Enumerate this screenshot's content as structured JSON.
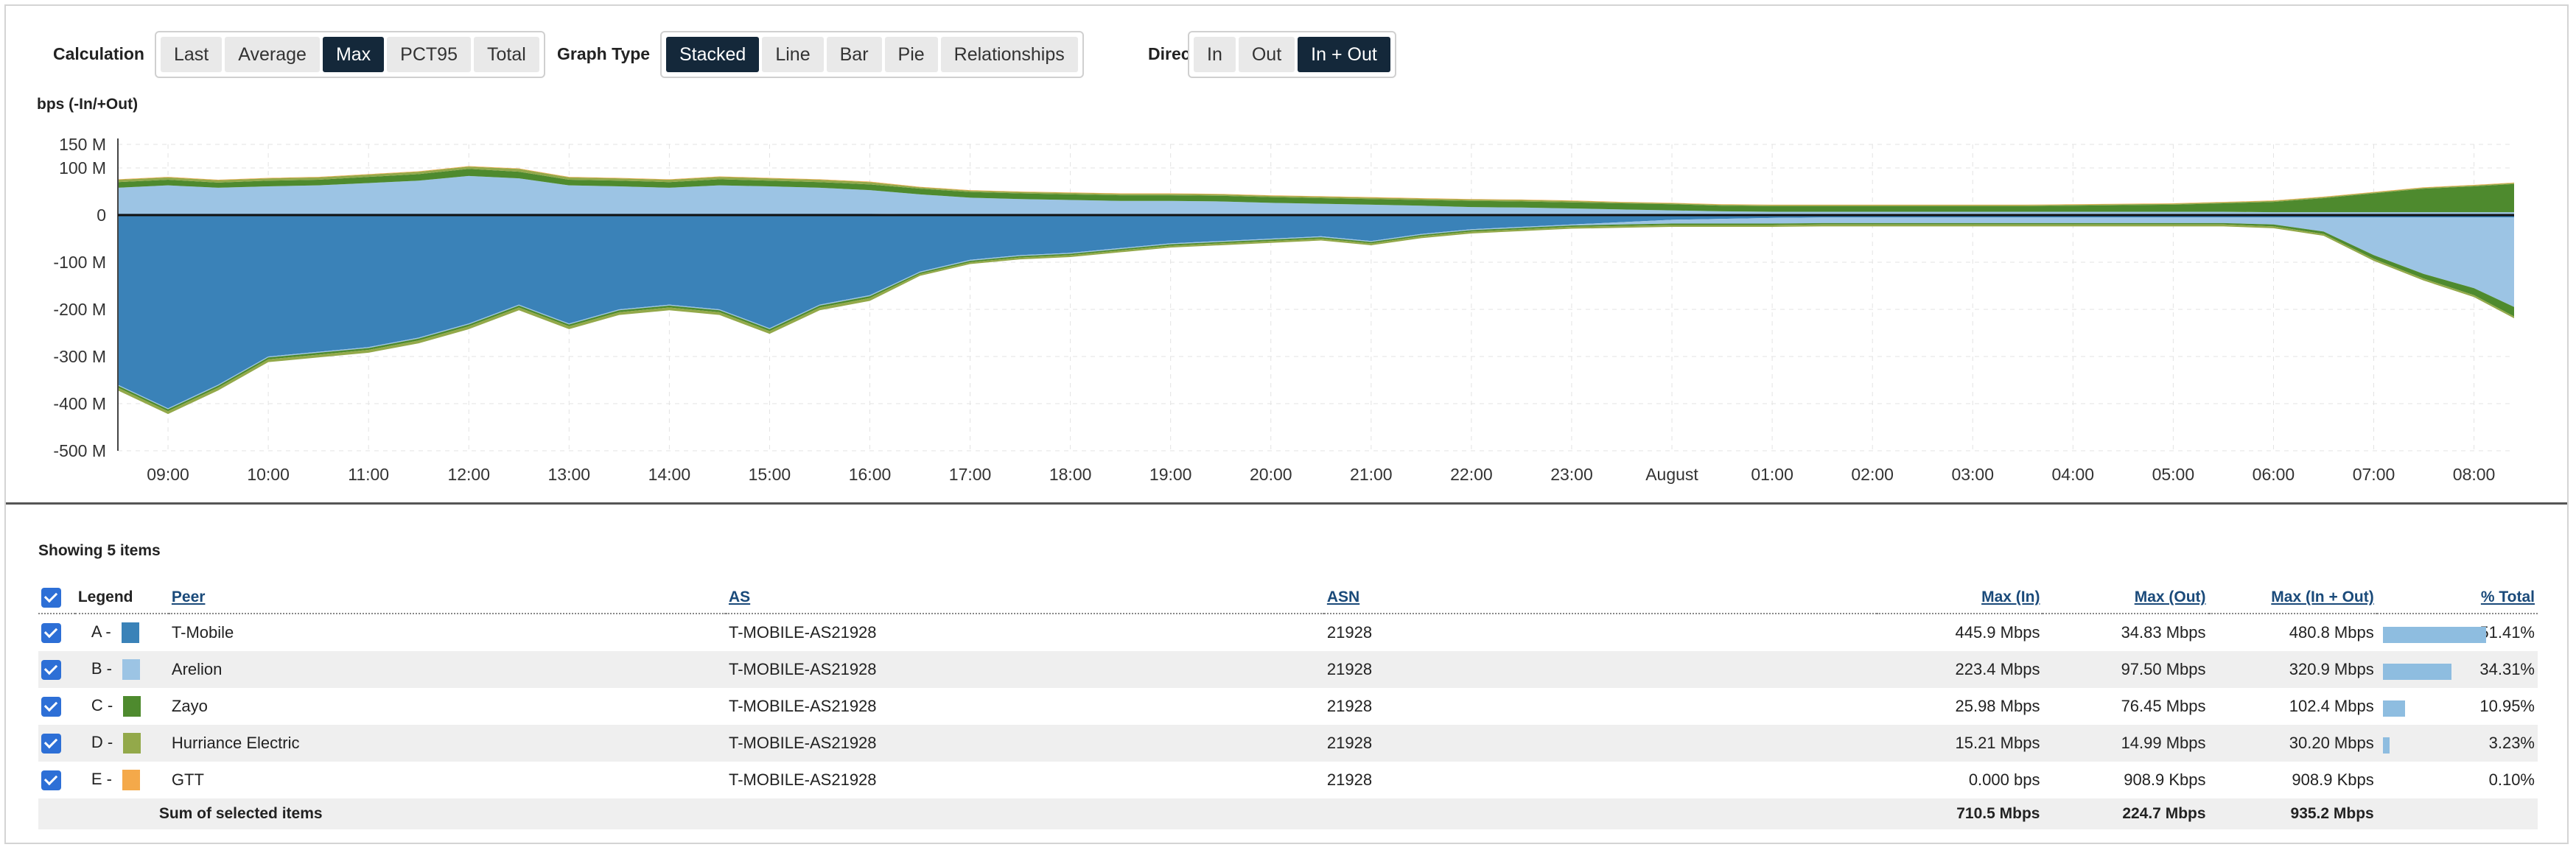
{
  "toolbar": {
    "calculation_label": "Calculation",
    "calculation_options": [
      "Last",
      "Average",
      "Max",
      "PCT95",
      "Total"
    ],
    "calculation_active": "Max",
    "graph_type_label": "Graph Type",
    "graph_type_options": [
      "Stacked",
      "Line",
      "Bar",
      "Pie",
      "Relationships"
    ],
    "graph_type_active": "Stacked",
    "direction_label": "Direction",
    "direction_options": [
      "In",
      "Out",
      "In + Out"
    ],
    "direction_active": "In + Out"
  },
  "chart_data": {
    "type": "area",
    "stacked": true,
    "ylabel": "bps (-In/+Out)",
    "ylim": [
      -500,
      150
    ],
    "y_unit": "M",
    "y_ticks": [
      "150 M",
      "100 M",
      "0",
      "-100 M",
      "-200 M",
      "-300 M",
      "-400 M",
      "-500 M"
    ],
    "y_tick_values": [
      150,
      100,
      0,
      -100,
      -200,
      -300,
      -400,
      -500
    ],
    "x_ticks": [
      "09:00",
      "10:00",
      "11:00",
      "12:00",
      "13:00",
      "14:00",
      "15:00",
      "16:00",
      "17:00",
      "18:00",
      "19:00",
      "20:00",
      "21:00",
      "22:00",
      "23:00",
      "August",
      "01:00",
      "02:00",
      "03:00",
      "04:00",
      "05:00",
      "06:00",
      "07:00",
      "08:00"
    ],
    "x_tick_hours": [
      9,
      10,
      11,
      12,
      13,
      14,
      15,
      16,
      17,
      18,
      19,
      20,
      21,
      22,
      23,
      24,
      25,
      26,
      27,
      28,
      29,
      30,
      31,
      32
    ],
    "x_range_hours": [
      8.5,
      32.4
    ],
    "grid": true,
    "colors": {
      "A": "#3a82b8",
      "B": "#9cc4e4",
      "C": "#4e8a2e",
      "D": "#93a94a",
      "E": "#f4a94a"
    },
    "hours": [
      8.5,
      9,
      9.5,
      10,
      10.5,
      11,
      11.5,
      12,
      12.5,
      13,
      13.5,
      14,
      14.5,
      15,
      15.5,
      16,
      16.5,
      17,
      17.5,
      18,
      18.5,
      19,
      19.5,
      20,
      20.5,
      21,
      21.5,
      22,
      22.5,
      23,
      23.5,
      24,
      24.5,
      25,
      25.5,
      26,
      26.5,
      27,
      27.5,
      28,
      28.5,
      29,
      29.5,
      30,
      30.5,
      31,
      31.5,
      32,
      32.4
    ],
    "series": [
      {
        "name": "T-Mobile",
        "letter": "A",
        "in": [
          -360,
          -410,
          -360,
          -300,
          -290,
          -280,
          -260,
          -230,
          -190,
          -230,
          -200,
          -190,
          -200,
          -240,
          -190,
          -170,
          -120,
          -95,
          -85,
          -80,
          -70,
          -60,
          -55,
          -50,
          -45,
          -55,
          -40,
          -30,
          -25,
          -20,
          -15,
          -10,
          -8,
          -6,
          -5,
          -5,
          -5,
          -5,
          -5,
          -5,
          -5,
          -5,
          -5,
          -5,
          -5,
          -5,
          -5,
          -5,
          -5
        ],
        "out": [
          3,
          3,
          3,
          3,
          3,
          3,
          3,
          3,
          3,
          3,
          3,
          3,
          3,
          3,
          3,
          3,
          2,
          2,
          2,
          2,
          2,
          2,
          2,
          2,
          2,
          2,
          2,
          2,
          2,
          2,
          2,
          2,
          2,
          2,
          2,
          2,
          2,
          2,
          2,
          2,
          2,
          2,
          2,
          2,
          2,
          2,
          2,
          2,
          2
        ]
      },
      {
        "name": "Arelion",
        "letter": "B",
        "in": [
          -2,
          -2,
          -2,
          -2,
          -2,
          -2,
          -2,
          -2,
          -2,
          -2,
          -2,
          -2,
          -2,
          -2,
          -2,
          -2,
          -2,
          -2,
          -2,
          -2,
          -2,
          -2,
          -2,
          -2,
          -2,
          -2,
          -2,
          -2,
          -2,
          -2,
          -5,
          -8,
          -10,
          -12,
          -12,
          -12,
          -12,
          -12,
          -12,
          -12,
          -12,
          -12,
          -12,
          -15,
          -30,
          -80,
          -120,
          -150,
          -190
        ],
        "out": [
          55,
          60,
          55,
          58,
          60,
          65,
          70,
          80,
          75,
          60,
          58,
          55,
          60,
          58,
          55,
          50,
          42,
          35,
          32,
          30,
          28,
          28,
          27,
          24,
          22,
          20,
          18,
          15,
          14,
          12,
          10,
          8,
          6,
          5,
          5,
          5,
          5,
          5,
          5,
          5,
          5,
          5,
          5,
          4,
          4,
          4,
          4,
          4,
          4
        ]
      },
      {
        "name": "Zayo",
        "letter": "C",
        "in": [
          -4,
          -4,
          -4,
          -4,
          -4,
          -4,
          -4,
          -4,
          -4,
          -4,
          -4,
          -4,
          -4,
          -4,
          -4,
          -4,
          -3,
          -3,
          -3,
          -3,
          -3,
          -3,
          -3,
          -3,
          -3,
          -3,
          -3,
          -3,
          -3,
          -3,
          -3,
          -3,
          -3,
          -3,
          -3,
          -3,
          -3,
          -3,
          -3,
          -3,
          -3,
          -3,
          -3,
          -4,
          -5,
          -8,
          -10,
          -15,
          -20
        ],
        "out": [
          12,
          12,
          11,
          12,
          12,
          13,
          14,
          15,
          14,
          12,
          12,
          12,
          13,
          12,
          12,
          12,
          12,
          12,
          12,
          12,
          12,
          12,
          12,
          12,
          12,
          12,
          12,
          13,
          13,
          13,
          13,
          13,
          12,
          12,
          12,
          12,
          12,
          12,
          12,
          13,
          14,
          15,
          18,
          22,
          30,
          40,
          50,
          55,
          60
        ]
      },
      {
        "name": "Hurriance Electric",
        "letter": "D",
        "in": [
          -6,
          -6,
          -6,
          -6,
          -6,
          -6,
          -6,
          -6,
          -6,
          -6,
          -6,
          -6,
          -6,
          -6,
          -6,
          -6,
          -4,
          -4,
          -4,
          -4,
          -4,
          -4,
          -4,
          -4,
          -4,
          -4,
          -4,
          -4,
          -4,
          -4,
          -4,
          -4,
          -4,
          -4,
          -4,
          -4,
          -4,
          -4,
          -4,
          -4,
          -4,
          -4,
          -4,
          -4,
          -4,
          -4,
          -4,
          -4,
          -4
        ],
        "out": [
          5,
          5,
          5,
          5,
          5,
          5,
          5,
          5,
          6,
          5,
          5,
          5,
          5,
          5,
          5,
          5,
          3,
          3,
          3,
          3,
          3,
          3,
          3,
          3,
          3,
          3,
          3,
          3,
          3,
          3,
          2,
          2,
          2,
          2,
          2,
          2,
          2,
          2,
          2,
          2,
          2,
          2,
          2,
          2,
          2,
          2,
          2,
          2,
          2
        ]
      },
      {
        "name": "GTT",
        "letter": "E",
        "in": [
          0,
          0,
          0,
          0,
          0,
          0,
          0,
          0,
          0,
          0,
          0,
          0,
          0,
          0,
          0,
          0,
          0,
          0,
          0,
          0,
          0,
          0,
          0,
          0,
          0,
          0,
          0,
          0,
          0,
          0,
          0,
          0,
          0,
          0,
          0,
          0,
          0,
          0,
          0,
          0,
          0,
          0,
          0,
          0,
          0,
          0,
          0,
          0,
          0
        ],
        "out": [
          1,
          1,
          1,
          1,
          1,
          1,
          1,
          1,
          1,
          1,
          1,
          1,
          1,
          1,
          1,
          1,
          1,
          1,
          1,
          1,
          1,
          1,
          1,
          1,
          1,
          1,
          1,
          1,
          1,
          1,
          1,
          1,
          1,
          1,
          1,
          1,
          1,
          1,
          1,
          1,
          1,
          1,
          1,
          1,
          1,
          1,
          1,
          1,
          1
        ]
      }
    ]
  },
  "table": {
    "showing": "Showing 5 items",
    "headers": {
      "legend": "Legend",
      "peer": "Peer",
      "as": "AS",
      "asn": "ASN",
      "max_in": "Max (In)",
      "max_out": "Max (Out)",
      "max_inout": "Max (In + Out)",
      "pct_total": "% Total"
    },
    "rows": [
      {
        "letter": "A -",
        "color": "#3a82b8",
        "peer": "T-Mobile",
        "as": "T-MOBILE-AS21928",
        "asn": "21928",
        "max_in": "445.9 Mbps",
        "max_out": "34.83 Mbps",
        "max_inout": "480.8 Mbps",
        "pct": "51.41%",
        "pct_value": 51.41
      },
      {
        "letter": "B -",
        "color": "#9cc4e4",
        "peer": "Arelion",
        "as": "T-MOBILE-AS21928",
        "asn": "21928",
        "max_in": "223.4 Mbps",
        "max_out": "97.50 Mbps",
        "max_inout": "320.9 Mbps",
        "pct": "34.31%",
        "pct_value": 34.31
      },
      {
        "letter": "C -",
        "color": "#4e8a2e",
        "peer": "Zayo",
        "as": "T-MOBILE-AS21928",
        "asn": "21928",
        "max_in": "25.98 Mbps",
        "max_out": "76.45 Mbps",
        "max_inout": "102.4 Mbps",
        "pct": "10.95%",
        "pct_value": 10.95
      },
      {
        "letter": "D -",
        "color": "#93a94a",
        "peer": "Hurriance Electric",
        "as": "T-MOBILE-AS21928",
        "asn": "21928",
        "max_in": "15.21 Mbps",
        "max_out": "14.99 Mbps",
        "max_inout": "30.20 Mbps",
        "pct": "3.23%",
        "pct_value": 3.23
      },
      {
        "letter": "E -",
        "color": "#f4a94a",
        "peer": "GTT",
        "as": "T-MOBILE-AS21928",
        "asn": "21928",
        "max_in": "0.000 bps",
        "max_out": "908.9 Kbps",
        "max_inout": "908.9 Kbps",
        "pct": "0.10%",
        "pct_value": 0.1
      }
    ],
    "sum": {
      "label": "Sum of selected items",
      "max_in": "710.5 Mbps",
      "max_out": "224.7 Mbps",
      "max_inout": "935.2 Mbps"
    }
  }
}
